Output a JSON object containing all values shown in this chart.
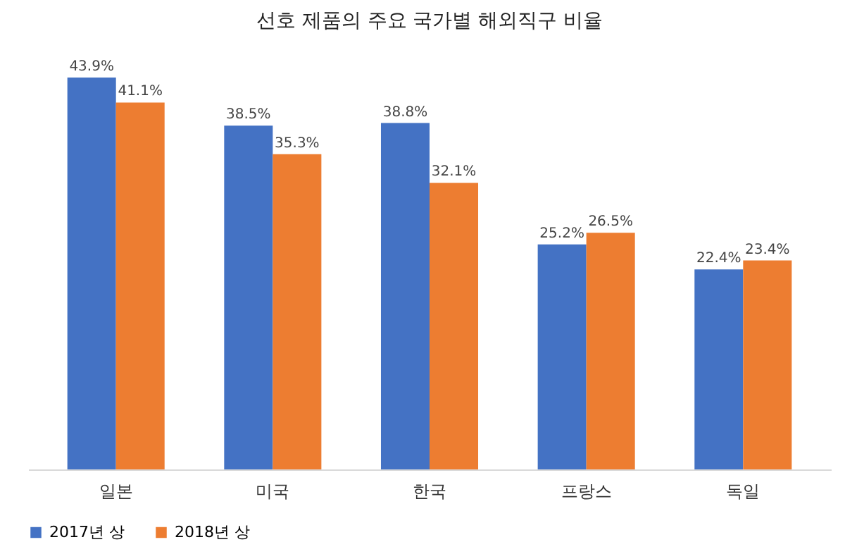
{
  "chart_data": {
    "type": "bar",
    "title": "선호 제품의 주요 국가별 해외직구 비율",
    "categories": [
      "일본",
      "미국",
      "한국",
      "프랑스",
      "독일"
    ],
    "series": [
      {
        "name": "2017년 상",
        "color": "#4472c4",
        "values": [
          43.9,
          38.5,
          38.8,
          25.2,
          22.4
        ],
        "value_labels": [
          "43.9%",
          "38.5%",
          "38.8%",
          "25.2%",
          "22.4%"
        ]
      },
      {
        "name": "2018년 상",
        "color": "#ed7d31",
        "values": [
          41.1,
          35.3,
          32.1,
          26.5,
          23.4
        ],
        "value_labels": [
          "41.1%",
          "35.3%",
          "32.1%",
          "26.5%",
          "23.4%"
        ]
      }
    ],
    "legend": "bottom"
  }
}
